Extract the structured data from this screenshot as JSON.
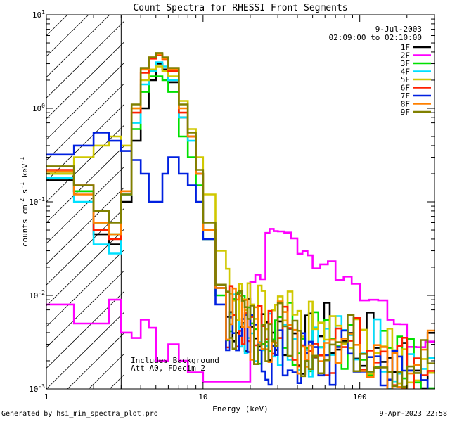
{
  "chart_data": {
    "type": "line",
    "title": "Count Spectra for RHESSI Front Segments",
    "xlabel": "Energy (keV)",
    "ylabel_parts": [
      "counts cm",
      "-2",
      " s",
      "-1",
      " keV",
      "-1"
    ],
    "xscale": "log",
    "yscale": "log",
    "xlim": [
      1,
      300
    ],
    "ylim": [
      0.001,
      10
    ],
    "x_ticks": [
      {
        "value": 1,
        "label": "1"
      },
      {
        "value": 10,
        "label": "10"
      },
      {
        "value": 100,
        "label": "100"
      }
    ],
    "y_ticks": [
      {
        "value": 0.001,
        "mant": "10",
        "exp": "-3"
      },
      {
        "value": 0.01,
        "mant": "10",
        "exp": "-2"
      },
      {
        "value": 0.1,
        "mant": "10",
        "exp": "-1"
      },
      {
        "value": 1,
        "mant": "10",
        "exp": "0"
      },
      {
        "value": 10,
        "mant": "10",
        "exp": "1"
      }
    ],
    "excluded_region_x": [
      1,
      3
    ],
    "date": "9-Jul-2003",
    "time_range": "02:09:00 to 02:10:00",
    "annotations": [
      "Includes Background",
      "Att A0, FDecim 2"
    ],
    "energy_edges": [
      1,
      1.5,
      2,
      2.5,
      3,
      3.5,
      4,
      4.5,
      5,
      5.5,
      6,
      7,
      8,
      9,
      10,
      12,
      14,
      17,
      20,
      25,
      30,
      40,
      50,
      70,
      100,
      150,
      200,
      300
    ],
    "series": [
      {
        "name": "1F",
        "color": "#000000",
        "values": [
          0.17,
          0.13,
          0.045,
          0.035,
          0.1,
          0.45,
          1.0,
          2.0,
          3.0,
          2.6,
          1.9,
          0.8,
          0.5,
          0.2,
          0.05,
          0.012,
          0.006,
          0.005,
          0.004,
          0.004,
          0.004,
          0.003,
          0.004,
          0.003,
          0.003,
          0.002,
          0.002
        ]
      },
      {
        "name": "2F",
        "color": "#ff00ff",
        "values": [
          0.008,
          0.005,
          0.005,
          0.009,
          0.004,
          0.0035,
          0.0055,
          0.0045,
          0.002,
          0.002,
          0.003,
          0.002,
          0.0015,
          0.0015,
          0.0012,
          0.0012,
          0.0012,
          0.0012,
          0.015,
          0.05,
          0.045,
          0.03,
          0.022,
          0.014,
          0.009,
          0.005,
          0.003
        ]
      },
      {
        "name": "3F",
        "color": "#00e000",
        "values": [
          0.2,
          0.13,
          0.06,
          0.045,
          0.12,
          0.6,
          1.5,
          2.2,
          2.2,
          2.0,
          1.5,
          0.5,
          0.3,
          0.15,
          0.04,
          0.01,
          0.006,
          0.005,
          0.004,
          0.004,
          0.004,
          0.003,
          0.003,
          0.003,
          0.003,
          0.002,
          0.002
        ]
      },
      {
        "name": "4F",
        "color": "#00e0ff",
        "values": [
          0.18,
          0.1,
          0.035,
          0.028,
          0.12,
          0.7,
          1.8,
          2.5,
          3.1,
          2.8,
          2.0,
          0.8,
          0.45,
          0.2,
          0.05,
          0.012,
          0.006,
          0.005,
          0.004,
          0.004,
          0.004,
          0.003,
          0.003,
          0.003,
          0.003,
          0.002,
          0.002
        ]
      },
      {
        "name": "5F",
        "color": "#d0c800",
        "values": [
          0.2,
          0.3,
          0.4,
          0.5,
          0.4,
          1.0,
          2.0,
          2.6,
          2.8,
          2.5,
          2.2,
          1.2,
          0.6,
          0.3,
          0.12,
          0.03,
          0.01,
          0.007,
          0.006,
          0.005,
          0.005,
          0.004,
          0.004,
          0.003,
          0.003,
          0.002,
          0.002
        ]
      },
      {
        "name": "6F",
        "color": "#ff2000",
        "values": [
          0.22,
          0.15,
          0.05,
          0.04,
          0.13,
          0.9,
          2.4,
          3.4,
          3.7,
          3.3,
          2.5,
          0.9,
          0.5,
          0.2,
          0.05,
          0.012,
          0.006,
          0.005,
          0.004,
          0.004,
          0.004,
          0.003,
          0.003,
          0.003,
          0.003,
          0.002,
          0.002
        ]
      },
      {
        "name": "7F",
        "color": "#0020e0",
        "values": [
          0.32,
          0.4,
          0.55,
          0.45,
          0.35,
          0.28,
          0.2,
          0.1,
          0.1,
          0.2,
          0.3,
          0.2,
          0.15,
          0.1,
          0.04,
          0.008,
          0.004,
          0.003,
          0.003,
          0.002,
          0.002,
          0.002,
          0.002,
          0.002,
          0.002,
          0.0015,
          0.0015
        ]
      },
      {
        "name": "8F",
        "color": "#ff8000",
        "values": [
          0.21,
          0.12,
          0.06,
          0.045,
          0.13,
          1.0,
          2.6,
          3.5,
          3.8,
          3.4,
          2.6,
          1.0,
          0.5,
          0.2,
          0.05,
          0.012,
          0.006,
          0.005,
          0.004,
          0.004,
          0.004,
          0.003,
          0.003,
          0.003,
          0.003,
          0.002,
          0.002
        ]
      },
      {
        "name": "9F",
        "color": "#808000",
        "values": [
          0.24,
          0.15,
          0.08,
          0.06,
          0.12,
          1.1,
          2.7,
          3.5,
          3.9,
          3.5,
          2.7,
          1.1,
          0.55,
          0.22,
          0.06,
          0.013,
          0.006,
          0.005,
          0.004,
          0.004,
          0.004,
          0.003,
          0.003,
          0.003,
          0.003,
          0.002,
          0.002
        ]
      }
    ]
  },
  "footer": {
    "generated_by": "Generated by hsi_min_spectra_plot.pro",
    "timestamp": "9-Apr-2023 22:58"
  }
}
